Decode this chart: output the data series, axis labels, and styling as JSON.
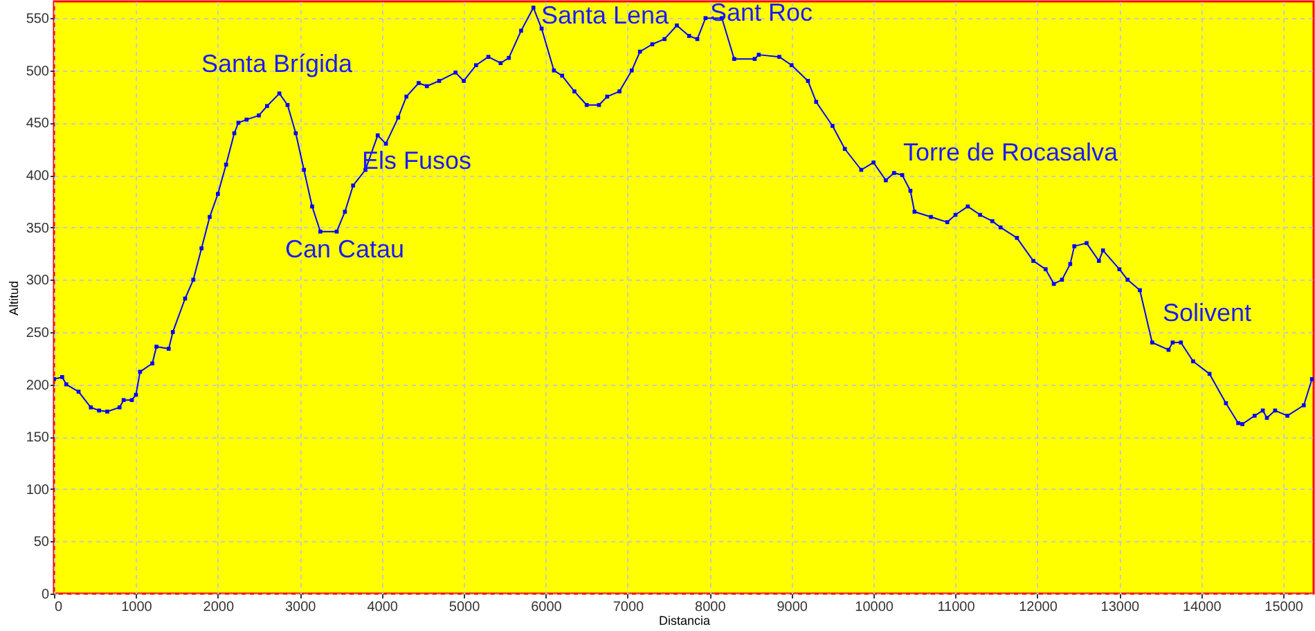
{
  "chart_data": {
    "type": "line",
    "xlabel": "Distancia",
    "ylabel": "Altitud",
    "x": [
      0,
      100,
      150,
      300,
      450,
      550,
      650,
      800,
      850,
      950,
      1000,
      1050,
      1200,
      1250,
      1400,
      1450,
      1600,
      1700,
      1800,
      1900,
      2000,
      2100,
      2200,
      2250,
      2350,
      2500,
      2600,
      2750,
      2850,
      2950,
      3050,
      3150,
      3250,
      3450,
      3550,
      3650,
      3800,
      3950,
      4050,
      4200,
      4300,
      4450,
      4550,
      4700,
      4900,
      5000,
      5150,
      5300,
      5450,
      5550,
      5700,
      5850,
      5950,
      6100,
      6200,
      6350,
      6500,
      6650,
      6750,
      6900,
      7050,
      7150,
      7300,
      7450,
      7600,
      7750,
      7850,
      7950,
      8150,
      8300,
      8550,
      8600,
      8850,
      9000,
      9200,
      9300,
      9500,
      9650,
      9850,
      10000,
      10150,
      10250,
      10350,
      10450,
      10500,
      10700,
      10900,
      11000,
      11150,
      11300,
      11450,
      11550,
      11750,
      11950,
      12100,
      12200,
      12300,
      12400,
      12450,
      12600,
      12750,
      12800,
      13000,
      13100,
      13250,
      13400,
      13600,
      13650,
      13750,
      13900,
      14100,
      14300,
      14450,
      14500,
      14650,
      14750,
      14800,
      14900,
      15050,
      15250,
      15350
    ],
    "series": [
      {
        "color": "#0000ff",
        "values": [
          205,
          207,
          200,
          193,
          178,
          175,
          174,
          178,
          185,
          185,
          190,
          212,
          220,
          236,
          234,
          250,
          282,
          300,
          330,
          360,
          382,
          410,
          440,
          450,
          453,
          457,
          466,
          478,
          467,
          440,
          405,
          370,
          346,
          346,
          365,
          390,
          405,
          438,
          430,
          455,
          475,
          488,
          485,
          490,
          498,
          490,
          505,
          513,
          507,
          512,
          538,
          560,
          540,
          500,
          495,
          480,
          467,
          467,
          475,
          480,
          500,
          518,
          525,
          530,
          543,
          533,
          530,
          550,
          550,
          511,
          511,
          515,
          513,
          505,
          490,
          470,
          447,
          425,
          405,
          412,
          395,
          402,
          400,
          385,
          365,
          360,
          355,
          362,
          370,
          362,
          356,
          350,
          340,
          318,
          310,
          296,
          300,
          315,
          332,
          335,
          318,
          328,
          310,
          300,
          290,
          240,
          233,
          240,
          240,
          222,
          210,
          182,
          163,
          162,
          170,
          175,
          168,
          175,
          170,
          180,
          205
        ]
      }
    ],
    "xlim": [
      0,
      15370
    ],
    "ylim": [
      0,
      566
    ],
    "xticks": [
      0,
      {
        "value": 1000,
        "label": "1000"
      },
      {
        "value": 2000,
        "label": "2000"
      },
      {
        "value": 3000,
        "label": "3000"
      },
      {
        "value": 4000,
        "label": "4000"
      },
      {
        "value": 5000,
        "label": "5000"
      },
      {
        "value": 6000,
        "label": "6000"
      },
      {
        "value": 7000,
        "label": "7000"
      },
      {
        "value": 8000,
        "label": "8000"
      },
      {
        "value": 9000,
        "label": "9000"
      },
      {
        "value": 10000,
        "label": "10000"
      },
      {
        "value": 11000,
        "label": "11000"
      },
      {
        "value": 12000,
        "label": "12000"
      },
      {
        "value": 13000,
        "label": "13000"
      },
      {
        "value": 14000,
        "label": "14000"
      },
      {
        "value": 15000,
        "label": "15000"
      }
    ],
    "yticks": [
      0,
      50,
      100,
      150,
      200,
      250,
      300,
      350,
      400,
      450,
      500,
      550
    ],
    "grid": true,
    "marker": "square",
    "line_style": "solid",
    "annotations": [
      "Santa Brígida",
      "Els Fusos",
      "Can Catau",
      "Santa Lena",
      "Sant Roc",
      "Torre de Rocasalva",
      "Solivent"
    ]
  }
}
